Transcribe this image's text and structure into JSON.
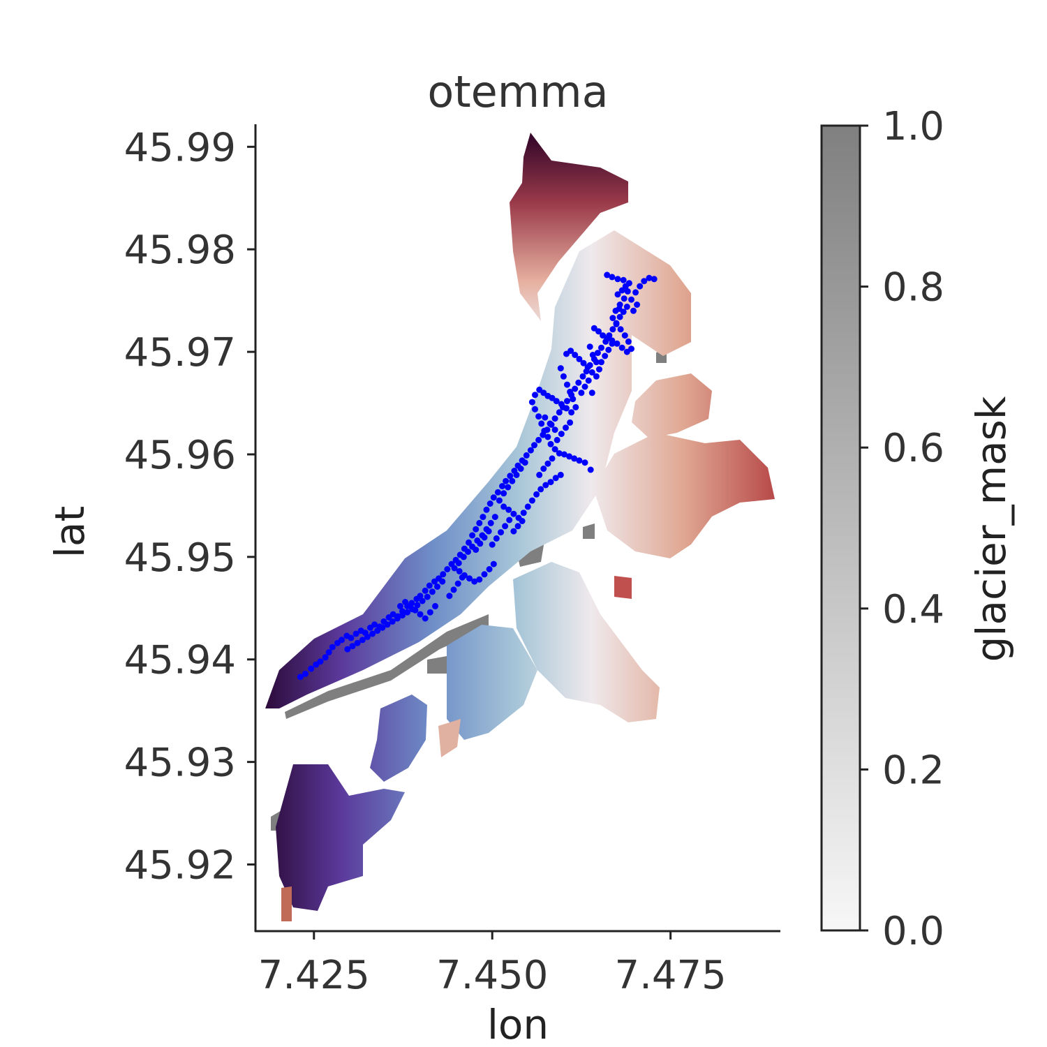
{
  "chart_data": {
    "type": "scatter",
    "title": "otemma",
    "xlabel": "lon",
    "ylabel": "lat",
    "xlim": [
      7.4168,
      7.4904
    ],
    "ylim": [
      45.9135,
      45.9922
    ],
    "x_ticks": [
      "7.425",
      "7.450",
      "7.475"
    ],
    "x_tick_values": [
      7.425,
      7.45,
      7.475
    ],
    "y_ticks": [
      "45.92",
      "45.93",
      "45.94",
      "45.95",
      "45.96",
      "45.97",
      "45.98",
      "45.99"
    ],
    "y_tick_values": [
      45.92,
      45.93,
      45.94,
      45.95,
      45.96,
      45.97,
      45.98,
      45.99
    ],
    "grid": false,
    "colorbar": {
      "label": "glacier_mask",
      "range": [
        0.0,
        1.0
      ],
      "ticks": [
        "0.0",
        "0.2",
        "0.4",
        "0.6",
        "0.8",
        "1.0"
      ],
      "tick_values": [
        0,
        0.2,
        0.4,
        0.6,
        0.8,
        1.0
      ],
      "colors": [
        "#f7f7f7",
        "#808080"
      ]
    },
    "background_map": {
      "description_colors": [
        "#2d0b3b",
        "#5b3a9c",
        "#6f8fc8",
        "#c8dce6",
        "#efe9ec",
        "#e0a893",
        "#b84a4a",
        "#6d1a2c"
      ],
      "mask_color": "#7f7f7f"
    },
    "series": [
      {
        "color": "#0000ff",
        "points": [
          [
            7.4231,
            45.9383
          ],
          [
            7.4238,
            45.9386
          ],
          [
            7.4246,
            45.9391
          ],
          [
            7.4253,
            45.9395
          ],
          [
            7.4259,
            45.9398
          ],
          [
            7.4266,
            45.9402
          ],
          [
            7.4271,
            45.9407
          ],
          [
            7.4276,
            45.9412
          ],
          [
            7.4283,
            45.9416
          ],
          [
            7.4289,
            45.9419
          ],
          [
            7.4296,
            45.9423
          ],
          [
            7.4302,
            45.9421
          ],
          [
            7.4309,
            45.9425
          ],
          [
            7.4316,
            45.9428
          ],
          [
            7.4322,
            45.9426
          ],
          [
            7.4329,
            45.9431
          ],
          [
            7.4335,
            45.9434
          ],
          [
            7.4342,
            45.9432
          ],
          [
            7.4348,
            45.9437
          ],
          [
            7.4355,
            45.9441
          ],
          [
            7.4361,
            45.9444
          ],
          [
            7.4368,
            45.9442
          ],
          [
            7.4374,
            45.9447
          ],
          [
            7.4381,
            45.9452
          ],
          [
            7.4387,
            45.9455
          ],
          [
            7.4394,
            45.9459
          ],
          [
            7.4399,
            45.9462
          ],
          [
            7.4406,
            45.9467
          ],
          [
            7.4412,
            45.9472
          ],
          [
            7.4419,
            45.9476
          ],
          [
            7.4425,
            45.9479
          ],
          [
            7.4431,
            45.9483
          ],
          [
            7.4437,
            45.9488
          ],
          [
            7.4443,
            45.9493
          ],
          [
            7.4449,
            45.9497
          ],
          [
            7.4455,
            45.9502
          ],
          [
            7.4461,
            45.9508
          ],
          [
            7.4467,
            45.9514
          ],
          [
            7.4472,
            45.9521
          ],
          [
            7.4477,
            45.9527
          ],
          [
            7.4482,
            45.9533
          ],
          [
            7.4487,
            45.9539
          ],
          [
            7.4492,
            45.9546
          ],
          [
            7.4497,
            45.9552
          ],
          [
            7.4502,
            45.9558
          ],
          [
            7.4508,
            45.9563
          ],
          [
            7.4514,
            45.9569
          ],
          [
            7.4519,
            45.9574
          ],
          [
            7.4525,
            45.9579
          ],
          [
            7.4531,
            45.9584
          ],
          [
            7.4536,
            45.9589
          ],
          [
            7.4542,
            45.9594
          ],
          [
            7.4548,
            45.9599
          ],
          [
            7.4554,
            45.9604
          ],
          [
            7.4559,
            45.9609
          ],
          [
            7.4565,
            45.9614
          ],
          [
            7.4571,
            45.9619
          ],
          [
            7.4577,
            45.9624
          ],
          [
            7.4583,
            45.9629
          ],
          [
            7.4588,
            45.9635
          ],
          [
            7.4594,
            45.9641
          ],
          [
            7.4599,
            45.9646
          ],
          [
            7.4605,
            45.9652
          ],
          [
            7.4611,
            45.9658
          ],
          [
            7.4616,
            45.9664
          ],
          [
            7.4621,
            45.967
          ],
          [
            7.4627,
            45.9676
          ],
          [
            7.4632,
            45.9681
          ],
          [
            7.4637,
            45.9687
          ],
          [
            7.4643,
            45.9693
          ],
          [
            7.4648,
            45.9699
          ],
          [
            7.4653,
            45.9704
          ],
          [
            7.4659,
            45.971
          ],
          [
            7.4664,
            45.9716
          ],
          [
            7.4669,
            45.9722
          ],
          [
            7.4674,
            45.9728
          ],
          [
            7.4679,
            45.9734
          ],
          [
            7.4684,
            45.9739
          ],
          [
            7.4689,
            45.9744
          ],
          [
            7.4695,
            45.9751
          ],
          [
            7.4701,
            45.9758
          ],
          [
            7.4707,
            45.9764
          ],
          [
            7.4713,
            45.9769
          ],
          [
            7.472,
            45.9772
          ],
          [
            7.4727,
            45.9771
          ],
          [
            7.4661,
            45.9775
          ],
          [
            7.4668,
            45.9773
          ],
          [
            7.4676,
            45.9771
          ],
          [
            7.4684,
            45.977
          ],
          [
            7.4692,
            45.9767
          ],
          [
            7.469,
            45.9759
          ],
          [
            7.4685,
            45.9752
          ],
          [
            7.4679,
            45.9746
          ],
          [
            7.4673,
            45.974
          ],
          [
            7.4669,
            45.9733
          ],
          [
            7.4674,
            45.9727
          ],
          [
            7.468,
            45.9722
          ],
          [
            7.4686,
            45.9716
          ],
          [
            7.4691,
            45.971
          ],
          [
            7.4695,
            45.9703
          ],
          [
            7.4689,
            45.97
          ],
          [
            7.4682,
            45.9704
          ],
          [
            7.4675,
            45.9708
          ],
          [
            7.4668,
            45.9711
          ],
          [
            7.4661,
            45.9713
          ],
          [
            7.4655,
            45.9716
          ],
          [
            7.4649,
            45.972
          ],
          [
            7.4643,
            45.9723
          ],
          [
            7.4637,
            45.9705
          ],
          [
            7.4641,
            45.9697
          ],
          [
            7.4646,
            45.969
          ],
          [
            7.465,
            45.9683
          ],
          [
            7.4646,
            45.9676
          ],
          [
            7.464,
            45.968
          ],
          [
            7.4634,
            45.9685
          ],
          [
            7.4628,
            45.9689
          ],
          [
            7.4622,
            45.9693
          ],
          [
            7.4616,
            45.9697
          ],
          [
            7.461,
            45.9701
          ],
          [
            7.4604,
            45.9698
          ],
          [
            7.4596,
            45.9684
          ],
          [
            7.46,
            45.9676
          ],
          [
            7.4605,
            45.9668
          ],
          [
            7.4609,
            45.9661
          ],
          [
            7.4613,
            45.9654
          ],
          [
            7.4617,
            45.9646
          ],
          [
            7.4611,
            45.9641
          ],
          [
            7.4604,
            45.9645
          ],
          [
            7.4597,
            45.9649
          ],
          [
            7.459,
            45.9652
          ],
          [
            7.4584,
            45.9655
          ],
          [
            7.4578,
            45.9657
          ],
          [
            7.4572,
            45.966
          ],
          [
            7.4566,
            45.9663
          ],
          [
            7.456,
            45.9658
          ],
          [
            7.4556,
            45.9651
          ],
          [
            7.456,
            45.9644
          ],
          [
            7.4565,
            45.9637
          ],
          [
            7.4569,
            45.963
          ],
          [
            7.4573,
            45.9623
          ],
          [
            7.4578,
            45.9617
          ],
          [
            7.4582,
            45.961
          ],
          [
            7.4588,
            45.9605
          ],
          [
            7.4594,
            45.9601
          ],
          [
            7.4601,
            45.96
          ],
          [
            7.4608,
            45.9598
          ],
          [
            7.4615,
            45.9596
          ],
          [
            7.4622,
            45.9594
          ],
          [
            7.463,
            45.9592
          ],
          [
            7.4638,
            45.9585
          ],
          [
            7.4591,
            45.9614
          ],
          [
            7.4597,
            45.962
          ],
          [
            7.4603,
            45.9626
          ],
          [
            7.4609,
            45.9631
          ],
          [
            7.4588,
            45.9624
          ],
          [
            7.4581,
            45.963
          ],
          [
            7.4574,
            45.9636
          ],
          [
            7.4546,
            45.9592
          ],
          [
            7.454,
            45.9586
          ],
          [
            7.4534,
            45.958
          ],
          [
            7.4528,
            45.9574
          ],
          [
            7.4522,
            45.9568
          ],
          [
            7.4516,
            45.9562
          ],
          [
            7.451,
            45.9555
          ],
          [
            7.4516,
            45.9549
          ],
          [
            7.4523,
            45.9546
          ],
          [
            7.453,
            45.9542
          ],
          [
            7.4537,
            45.9538
          ],
          [
            7.4544,
            45.9543
          ],
          [
            7.455,
            45.9549
          ],
          [
            7.4556,
            45.9555
          ],
          [
            7.4562,
            45.9561
          ],
          [
            7.4568,
            45.9566
          ],
          [
            7.4575,
            45.957
          ],
          [
            7.4582,
            45.9573
          ],
          [
            7.4589,
            45.9577
          ],
          [
            7.4596,
            45.958
          ],
          [
            7.4504,
            45.9539
          ],
          [
            7.4498,
            45.9533
          ],
          [
            7.4492,
            45.9527
          ],
          [
            7.4486,
            45.9521
          ],
          [
            7.4479,
            45.9516
          ],
          [
            7.4472,
            45.951
          ],
          [
            7.4466,
            45.9505
          ],
          [
            7.446,
            45.95
          ],
          [
            7.4453,
            45.9494
          ],
          [
            7.4447,
            45.9489
          ],
          [
            7.4454,
            45.9486
          ],
          [
            7.4461,
            45.9482
          ],
          [
            7.4468,
            45.9479
          ],
          [
            7.4475,
            45.9476
          ],
          [
            7.4482,
            45.9478
          ],
          [
            7.4489,
            45.9483
          ],
          [
            7.4496,
            45.9488
          ],
          [
            7.4502,
            45.9493
          ],
          [
            7.443,
            45.9476
          ],
          [
            7.4423,
            45.9471
          ],
          [
            7.4416,
            45.9466
          ],
          [
            7.4409,
            45.9461
          ],
          [
            7.4402,
            45.9457
          ],
          [
            7.4395,
            45.9453
          ],
          [
            7.4388,
            45.9449
          ],
          [
            7.4381,
            45.9446
          ],
          [
            7.4374,
            45.9443
          ],
          [
            7.4367,
            45.944
          ],
          [
            7.436,
            45.9437
          ],
          [
            7.4353,
            45.9434
          ],
          [
            7.4346,
            45.9431
          ],
          [
            7.4339,
            45.9428
          ],
          [
            7.4332,
            45.9425
          ],
          [
            7.4325,
            45.9422
          ],
          [
            7.4318,
            45.9419
          ],
          [
            7.4311,
            45.9416
          ],
          [
            7.4304,
            45.9413
          ],
          [
            7.4297,
            45.941
          ],
          [
            7.444,
            45.9462
          ],
          [
            7.4446,
            45.9468
          ],
          [
            7.4452,
            45.9474
          ],
          [
            7.4458,
            45.948
          ],
          [
            7.442,
            45.9452
          ],
          [
            7.4413,
            45.9446
          ],
          [
            7.4406,
            45.944
          ],
          [
            7.4399,
            45.9444
          ],
          [
            7.4392,
            45.9448
          ],
          [
            7.4385,
            45.9452
          ],
          [
            7.4378,
            45.9456
          ],
          [
            7.4371,
            45.9452
          ],
          [
            7.45,
            45.9512
          ],
          [
            7.4506,
            45.9518
          ],
          [
            7.4512,
            45.9524
          ],
          [
            7.4518,
            45.953
          ],
          [
            7.4524,
            45.9536
          ],
          [
            7.453,
            45.9525
          ],
          [
            7.4536,
            45.953
          ],
          [
            7.4542,
            45.9535
          ],
          [
            7.4495,
            45.9525
          ],
          [
            7.4489,
            45.9519
          ],
          [
            7.4483,
            45.9513
          ],
          [
            7.4477,
            45.9507
          ],
          [
            7.4566,
            45.958
          ],
          [
            7.4572,
            45.9586
          ],
          [
            7.4578,
            45.9591
          ],
          [
            7.4584,
            45.9596
          ],
          [
            7.4625,
            45.966
          ],
          [
            7.463,
            45.9666
          ],
          [
            7.4635,
            45.9672
          ],
          [
            7.464,
            45.966
          ],
          [
            7.4653,
            45.969
          ],
          [
            7.4658,
            45.9696
          ],
          [
            7.4663,
            45.9702
          ],
          [
            7.4668,
            45.9708
          ],
          [
            7.4682,
            45.976
          ],
          [
            7.4687,
            45.9764
          ],
          [
            7.4698,
            45.974
          ],
          [
            7.4703,
            45.9746
          ],
          [
            7.4678,
            45.9742
          ],
          [
            7.4676,
            45.9756
          ]
        ]
      }
    ]
  }
}
